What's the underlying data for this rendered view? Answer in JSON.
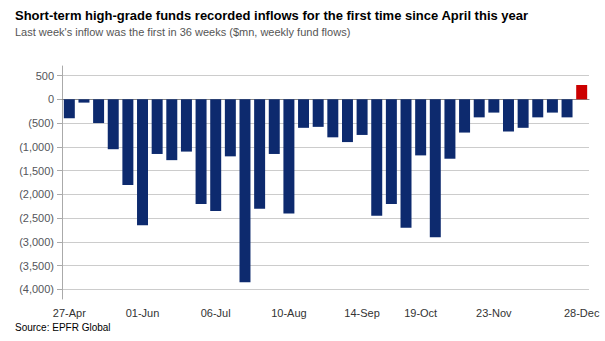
{
  "chart_data": {
    "type": "bar",
    "title": "Short-term high-grade funds recorded inflows for the first time since April this year",
    "subtitle": "Last week's inflow was the first in 36 weeks ($mn, weekly fund flows)",
    "source": "Source: EPFR Global",
    "categories": [
      "27-Apr",
      null,
      null,
      null,
      null,
      "01-Jun",
      null,
      null,
      null,
      null,
      "06-Jul",
      null,
      null,
      null,
      null,
      "10-Aug",
      null,
      null,
      null,
      null,
      "14-Sep",
      null,
      null,
      null,
      "19-Oct",
      null,
      null,
      null,
      null,
      "23-Nov",
      null,
      null,
      null,
      null,
      null,
      "28-Dec"
    ],
    "values": [
      -400,
      -70,
      -500,
      -1050,
      -1800,
      -2650,
      -1150,
      -1280,
      -1100,
      -2200,
      -2350,
      -1200,
      -3850,
      -2300,
      -1150,
      -2400,
      -600,
      -580,
      -800,
      -900,
      -750,
      -2450,
      -2200,
      -2700,
      -1180,
      -2900,
      -1250,
      -700,
      -380,
      -280,
      -680,
      -600,
      -380,
      -280,
      -380,
      300
    ],
    "colors": [
      "#0d2a6e",
      "#0d2a6e",
      "#0d2a6e",
      "#0d2a6e",
      "#0d2a6e",
      "#0d2a6e",
      "#0d2a6e",
      "#0d2a6e",
      "#0d2a6e",
      "#0d2a6e",
      "#0d2a6e",
      "#0d2a6e",
      "#0d2a6e",
      "#0d2a6e",
      "#0d2a6e",
      "#0d2a6e",
      "#0d2a6e",
      "#0d2a6e",
      "#0d2a6e",
      "#0d2a6e",
      "#0d2a6e",
      "#0d2a6e",
      "#0d2a6e",
      "#0d2a6e",
      "#0d2a6e",
      "#0d2a6e",
      "#0d2a6e",
      "#0d2a6e",
      "#0d2a6e",
      "#0d2a6e",
      "#0d2a6e",
      "#0d2a6e",
      "#0d2a6e",
      "#0d2a6e",
      "#0d2a6e",
      "#cc0000"
    ],
    "ylim": [
      -4200,
      700
    ],
    "yticks": [
      500,
      0,
      {
        "value": -500,
        "label": "(500)"
      },
      {
        "value": -1000,
        "label": "(1,000)"
      },
      {
        "value": -1500,
        "label": "(1,500)"
      },
      {
        "value": -2000,
        "label": "(2,000)"
      },
      {
        "value": -2500,
        "label": "(2,500)"
      },
      {
        "value": -3000,
        "label": "(3,000)"
      },
      {
        "value": -3500,
        "label": "(3,500)"
      },
      {
        "value": -4000,
        "label": "(4,000)"
      }
    ],
    "grid": true
  }
}
